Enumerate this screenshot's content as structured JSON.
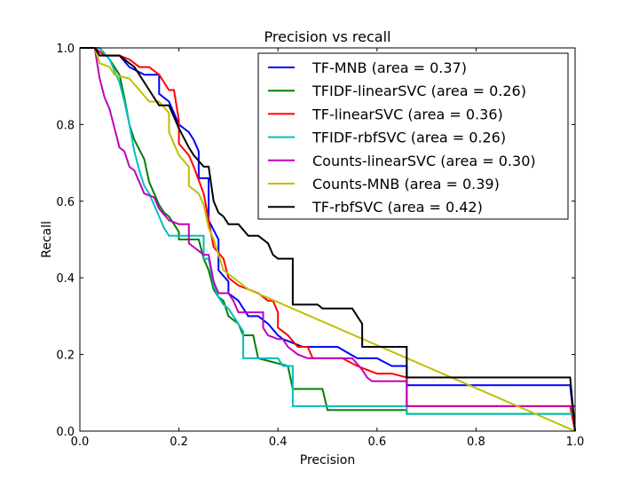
{
  "chart_data": {
    "type": "line",
    "title": "Precision vs recall",
    "xlabel": "Precision",
    "ylabel": "Recall",
    "xlim": [
      0.0,
      1.0
    ],
    "ylim": [
      0.0,
      1.0
    ],
    "xticks": [
      "0.0",
      "0.2",
      "0.4",
      "0.6",
      "0.8",
      "1.0"
    ],
    "yticks": [
      "0.0",
      "0.2",
      "0.4",
      "0.6",
      "0.8",
      "1.0"
    ],
    "grid": false,
    "legend_position": "top-right",
    "series": [
      {
        "name": "TF-MNB (area = 0.37)",
        "color": "#0000ff",
        "points": [
          [
            0.0,
            1.0
          ],
          [
            0.03,
            1.0
          ],
          [
            0.05,
            0.98
          ],
          [
            0.08,
            0.98
          ],
          [
            0.1,
            0.95
          ],
          [
            0.13,
            0.93
          ],
          [
            0.15,
            0.93
          ],
          [
            0.16,
            0.93
          ],
          [
            0.16,
            0.88
          ],
          [
            0.18,
            0.86
          ],
          [
            0.2,
            0.8
          ],
          [
            0.22,
            0.78
          ],
          [
            0.23,
            0.76
          ],
          [
            0.24,
            0.73
          ],
          [
            0.24,
            0.66
          ],
          [
            0.26,
            0.66
          ],
          [
            0.26,
            0.55
          ],
          [
            0.28,
            0.5
          ],
          [
            0.28,
            0.42
          ],
          [
            0.3,
            0.39
          ],
          [
            0.3,
            0.36
          ],
          [
            0.32,
            0.34
          ],
          [
            0.34,
            0.3
          ],
          [
            0.36,
            0.3
          ],
          [
            0.38,
            0.28
          ],
          [
            0.4,
            0.25
          ],
          [
            0.41,
            0.24
          ],
          [
            0.43,
            0.23
          ],
          [
            0.45,
            0.22
          ],
          [
            0.52,
            0.22
          ],
          [
            0.56,
            0.19
          ],
          [
            0.6,
            0.19
          ],
          [
            0.63,
            0.17
          ],
          [
            0.66,
            0.17
          ],
          [
            0.66,
            0.12
          ],
          [
            0.99,
            0.12
          ],
          [
            1.0,
            0.0
          ]
        ]
      },
      {
        "name": "TFIDF-linearSVC (area = 0.26)",
        "color": "#008000",
        "points": [
          [
            0.0,
            1.0
          ],
          [
            0.04,
            1.0
          ],
          [
            0.06,
            0.97
          ],
          [
            0.08,
            0.93
          ],
          [
            0.09,
            0.87
          ],
          [
            0.1,
            0.8
          ],
          [
            0.11,
            0.76
          ],
          [
            0.13,
            0.71
          ],
          [
            0.14,
            0.65
          ],
          [
            0.16,
            0.59
          ],
          [
            0.17,
            0.57
          ],
          [
            0.18,
            0.56
          ],
          [
            0.2,
            0.52
          ],
          [
            0.2,
            0.5
          ],
          [
            0.24,
            0.5
          ],
          [
            0.25,
            0.45
          ],
          [
            0.26,
            0.42
          ],
          [
            0.27,
            0.37
          ],
          [
            0.28,
            0.35
          ],
          [
            0.29,
            0.34
          ],
          [
            0.3,
            0.3
          ],
          [
            0.31,
            0.29
          ],
          [
            0.32,
            0.28
          ],
          [
            0.33,
            0.25
          ],
          [
            0.35,
            0.25
          ],
          [
            0.36,
            0.19
          ],
          [
            0.42,
            0.17
          ],
          [
            0.43,
            0.11
          ],
          [
            0.49,
            0.11
          ],
          [
            0.5,
            0.055
          ],
          [
            0.66,
            0.055
          ],
          [
            0.66,
            0.045
          ],
          [
            1.0,
            0.045
          ]
        ]
      },
      {
        "name": "TF-linearSVC (area = 0.36)",
        "color": "#ff0000",
        "points": [
          [
            0.0,
            1.0
          ],
          [
            0.03,
            1.0
          ],
          [
            0.05,
            0.98
          ],
          [
            0.08,
            0.98
          ],
          [
            0.1,
            0.97
          ],
          [
            0.12,
            0.95
          ],
          [
            0.14,
            0.95
          ],
          [
            0.16,
            0.93
          ],
          [
            0.18,
            0.89
          ],
          [
            0.19,
            0.89
          ],
          [
            0.2,
            0.81
          ],
          [
            0.2,
            0.75
          ],
          [
            0.22,
            0.72
          ],
          [
            0.23,
            0.69
          ],
          [
            0.25,
            0.62
          ],
          [
            0.26,
            0.55
          ],
          [
            0.27,
            0.48
          ],
          [
            0.29,
            0.45
          ],
          [
            0.3,
            0.4
          ],
          [
            0.32,
            0.38
          ],
          [
            0.34,
            0.37
          ],
          [
            0.36,
            0.36
          ],
          [
            0.38,
            0.34
          ],
          [
            0.39,
            0.34
          ],
          [
            0.4,
            0.31
          ],
          [
            0.4,
            0.27
          ],
          [
            0.42,
            0.25
          ],
          [
            0.44,
            0.22
          ],
          [
            0.46,
            0.22
          ],
          [
            0.47,
            0.19
          ],
          [
            0.53,
            0.19
          ],
          [
            0.56,
            0.17
          ],
          [
            0.58,
            0.16
          ],
          [
            0.6,
            0.15
          ],
          [
            0.63,
            0.15
          ],
          [
            0.66,
            0.14
          ],
          [
            0.66,
            0.065
          ],
          [
            0.99,
            0.065
          ],
          [
            1.0,
            0.0
          ]
        ]
      },
      {
        "name": "TFIDF-rbfSVC (area = 0.26)",
        "color": "#00bfbf",
        "points": [
          [
            0.0,
            1.0
          ],
          [
            0.04,
            1.0
          ],
          [
            0.06,
            0.97
          ],
          [
            0.08,
            0.91
          ],
          [
            0.09,
            0.86
          ],
          [
            0.1,
            0.8
          ],
          [
            0.11,
            0.73
          ],
          [
            0.12,
            0.68
          ],
          [
            0.13,
            0.64
          ],
          [
            0.14,
            0.62
          ],
          [
            0.16,
            0.56
          ],
          [
            0.17,
            0.53
          ],
          [
            0.18,
            0.51
          ],
          [
            0.25,
            0.51
          ],
          [
            0.25,
            0.45
          ],
          [
            0.26,
            0.45
          ],
          [
            0.27,
            0.38
          ],
          [
            0.28,
            0.35
          ],
          [
            0.29,
            0.33
          ],
          [
            0.3,
            0.32
          ],
          [
            0.31,
            0.3
          ],
          [
            0.33,
            0.26
          ],
          [
            0.33,
            0.19
          ],
          [
            0.4,
            0.19
          ],
          [
            0.41,
            0.17
          ],
          [
            0.43,
            0.17
          ],
          [
            0.43,
            0.065
          ],
          [
            0.66,
            0.065
          ],
          [
            0.66,
            0.045
          ],
          [
            1.0,
            0.045
          ]
        ]
      },
      {
        "name": "Counts-linearSVC (area = 0.30)",
        "color": "#bf00bf",
        "points": [
          [
            0.0,
            1.0
          ],
          [
            0.03,
            1.0
          ],
          [
            0.04,
            0.92
          ],
          [
            0.05,
            0.87
          ],
          [
            0.06,
            0.84
          ],
          [
            0.07,
            0.79
          ],
          [
            0.08,
            0.74
          ],
          [
            0.09,
            0.73
          ],
          [
            0.1,
            0.69
          ],
          [
            0.11,
            0.68
          ],
          [
            0.12,
            0.65
          ],
          [
            0.13,
            0.62
          ],
          [
            0.15,
            0.61
          ],
          [
            0.16,
            0.58
          ],
          [
            0.18,
            0.55
          ],
          [
            0.2,
            0.54
          ],
          [
            0.22,
            0.54
          ],
          [
            0.22,
            0.49
          ],
          [
            0.25,
            0.46
          ],
          [
            0.26,
            0.46
          ],
          [
            0.27,
            0.39
          ],
          [
            0.28,
            0.36
          ],
          [
            0.29,
            0.36
          ],
          [
            0.3,
            0.36
          ],
          [
            0.31,
            0.34
          ],
          [
            0.32,
            0.31
          ],
          [
            0.37,
            0.31
          ],
          [
            0.37,
            0.27
          ],
          [
            0.38,
            0.25
          ],
          [
            0.4,
            0.24
          ],
          [
            0.41,
            0.24
          ],
          [
            0.42,
            0.22
          ],
          [
            0.44,
            0.2
          ],
          [
            0.46,
            0.19
          ],
          [
            0.55,
            0.19
          ],
          [
            0.57,
            0.16
          ],
          [
            0.58,
            0.14
          ],
          [
            0.59,
            0.13
          ],
          [
            0.66,
            0.13
          ],
          [
            0.66,
            0.065
          ],
          [
            1.0,
            0.065
          ]
        ]
      },
      {
        "name": "Counts-MNB (area = 0.39)",
        "color": "#bfbf00",
        "points": [
          [
            0.0,
            1.0
          ],
          [
            0.03,
            1.0
          ],
          [
            0.04,
            0.96
          ],
          [
            0.06,
            0.95
          ],
          [
            0.07,
            0.93
          ],
          [
            0.1,
            0.92
          ],
          [
            0.12,
            0.89
          ],
          [
            0.14,
            0.86
          ],
          [
            0.16,
            0.86
          ],
          [
            0.18,
            0.83
          ],
          [
            0.18,
            0.78
          ],
          [
            0.2,
            0.72
          ],
          [
            0.22,
            0.69
          ],
          [
            0.22,
            0.64
          ],
          [
            0.24,
            0.62
          ],
          [
            0.25,
            0.59
          ],
          [
            0.26,
            0.53
          ],
          [
            0.27,
            0.5
          ],
          [
            0.29,
            0.42
          ],
          [
            0.31,
            0.4
          ],
          [
            0.32,
            0.39
          ],
          [
            0.34,
            0.37
          ],
          [
            1.0,
            0.0
          ]
        ]
      },
      {
        "name": "TF-rbfSVC (area = 0.42)",
        "color": "#000000",
        "points": [
          [
            0.0,
            1.0
          ],
          [
            0.03,
            1.0
          ],
          [
            0.04,
            0.98
          ],
          [
            0.08,
            0.98
          ],
          [
            0.09,
            0.97
          ],
          [
            0.11,
            0.95
          ],
          [
            0.12,
            0.93
          ],
          [
            0.14,
            0.89
          ],
          [
            0.15,
            0.87
          ],
          [
            0.16,
            0.85
          ],
          [
            0.18,
            0.85
          ],
          [
            0.2,
            0.79
          ],
          [
            0.22,
            0.74
          ],
          [
            0.23,
            0.72
          ],
          [
            0.25,
            0.69
          ],
          [
            0.26,
            0.69
          ],
          [
            0.27,
            0.6
          ],
          [
            0.28,
            0.57
          ],
          [
            0.29,
            0.56
          ],
          [
            0.3,
            0.54
          ],
          [
            0.32,
            0.54
          ],
          [
            0.34,
            0.51
          ],
          [
            0.36,
            0.51
          ],
          [
            0.38,
            0.49
          ],
          [
            0.39,
            0.46
          ],
          [
            0.4,
            0.45
          ],
          [
            0.43,
            0.45
          ],
          [
            0.43,
            0.33
          ],
          [
            0.48,
            0.33
          ],
          [
            0.49,
            0.32
          ],
          [
            0.55,
            0.32
          ],
          [
            0.56,
            0.3
          ],
          [
            0.57,
            0.28
          ],
          [
            0.57,
            0.22
          ],
          [
            0.66,
            0.22
          ],
          [
            0.66,
            0.14
          ],
          [
            0.99,
            0.14
          ],
          [
            1.0,
            0.0
          ]
        ]
      }
    ]
  }
}
